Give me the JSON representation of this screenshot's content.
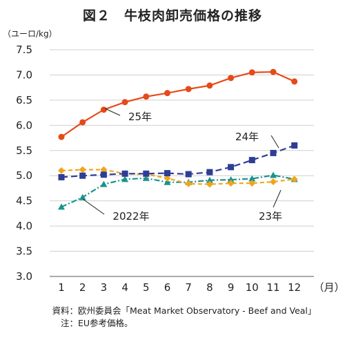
{
  "chart_data": {
    "type": "line",
    "title": "図２　牛枝肉卸売価格の推移",
    "ylabel": "（ユーロ/kg）",
    "x_unit": "（月）",
    "ylim": [
      3.0,
      7.5
    ],
    "yticks": [
      "3.0",
      "3.5",
      "4.0",
      "4.5",
      "5.0",
      "5.5",
      "6.0",
      "6.5",
      "7.0",
      "7.5"
    ],
    "categories": [
      "1",
      "2",
      "3",
      "4",
      "5",
      "6",
      "7",
      "8",
      "9",
      "10",
      "11",
      "12"
    ],
    "grid": true,
    "series": [
      {
        "name": "2022年",
        "color": "#18948c",
        "marker": "triangle",
        "dash": "dashdot",
        "values": [
          4.38,
          4.57,
          4.83,
          4.93,
          4.95,
          4.87,
          4.87,
          4.91,
          4.92,
          4.94,
          5.01,
          4.93
        ]
      },
      {
        "name": "23年",
        "color": "#f2a51c",
        "marker": "diamond",
        "dash": "dash",
        "values": [
          5.1,
          5.12,
          5.12,
          5.04,
          5.03,
          4.95,
          4.84,
          4.83,
          4.85,
          4.85,
          4.88,
          4.93
        ]
      },
      {
        "name": "24年",
        "color": "#2e3d95",
        "marker": "square",
        "dash": "longdash",
        "values": [
          4.97,
          5.0,
          5.02,
          5.04,
          5.04,
          5.05,
          5.03,
          5.07,
          5.17,
          5.31,
          5.45,
          5.6
        ]
      },
      {
        "name": "25年",
        "color": "#e64a19",
        "marker": "circle",
        "dash": "solid",
        "values": [
          5.77,
          6.06,
          6.31,
          6.46,
          6.57,
          6.64,
          6.72,
          6.79,
          6.94,
          7.05,
          7.06,
          6.87
        ]
      }
    ]
  },
  "notes": {
    "source_label": "資料：",
    "source_text": "欧州委員会「Meat Market Observatory - Beef and Veal」",
    "note_label": "注：",
    "note_text": "EU参考価格。"
  }
}
